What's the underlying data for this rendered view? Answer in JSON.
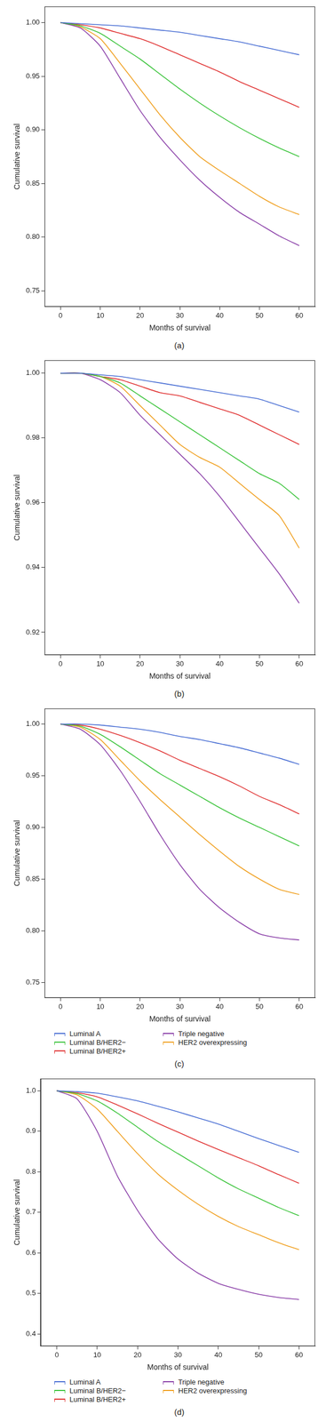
{
  "chart_data": [
    {
      "type": "line",
      "title": "(a)",
      "x_label": "Months of survival",
      "y_label": "Cumulative survival",
      "x": [
        0,
        5,
        10,
        15,
        20,
        25,
        30,
        35,
        40,
        45,
        50,
        55,
        60
      ],
      "xlim": [
        -4,
        64
      ],
      "xticks": [
        0,
        10,
        20,
        30,
        40,
        50,
        60
      ],
      "ylim": [
        0.735,
        1.015
      ],
      "yticks": [
        0.75,
        {
          "value": 0.8,
          "label": "0.80"
        },
        0.85,
        {
          "value": 0.9,
          "label": "0.90"
        },
        0.95,
        {
          "value": 1,
          "label": "1.00"
        }
      ],
      "grid": false,
      "series": [
        {
          "name": "Luminal A",
          "color": "#4a6fd4",
          "values": [
            1,
            0.999,
            0.998,
            0.997,
            0.995,
            0.993,
            0.991,
            0.988,
            0.985,
            0.982,
            0.978,
            0.974,
            0.97
          ]
        },
        {
          "name": "Luminal B/HER2−",
          "color": "#3cc43c",
          "values": [
            1,
            0.997,
            0.99,
            0.978,
            0.966,
            0.952,
            0.938,
            0.925,
            0.913,
            0.902,
            0.892,
            0.883,
            0.875
          ]
        },
        {
          "name": "Luminal B/HER2+",
          "color": "#e03232",
          "values": [
            1,
            0.998,
            0.995,
            0.99,
            0.985,
            0.978,
            0.97,
            0.962,
            0.954,
            0.945,
            0.937,
            0.929,
            0.921
          ]
        },
        {
          "name": "Triple negative",
          "color": "#8a3fa8",
          "values": [
            1,
            0.995,
            0.978,
            0.948,
            0.918,
            0.893,
            0.872,
            0.853,
            0.837,
            0.823,
            0.812,
            0.801,
            0.792
          ]
        },
        {
          "name": "HER2 overexpressing",
          "color": "#f0a020",
          "values": [
            1,
            0.996,
            0.985,
            0.962,
            0.938,
            0.914,
            0.893,
            0.875,
            0.862,
            0.85,
            0.838,
            0.828,
            0.821
          ]
        }
      ]
    },
    {
      "type": "line",
      "title": "(b)",
      "x_label": "Months of survival",
      "y_label": "Cumulative survival",
      "x": [
        0,
        5,
        10,
        15,
        20,
        25,
        30,
        35,
        40,
        45,
        50,
        55,
        60
      ],
      "xlim": [
        -4,
        64
      ],
      "xticks": [
        0,
        10,
        20,
        30,
        40,
        50,
        60
      ],
      "ylim": [
        0.913,
        1.004
      ],
      "yticks": [
        0.92,
        0.94,
        0.96,
        0.98,
        {
          "value": 1,
          "label": "1.00"
        }
      ],
      "grid": false,
      "series": [
        {
          "name": "Luminal A",
          "color": "#4a6fd4",
          "values": [
            1,
            1,
            0.9995,
            0.999,
            0.998,
            0.997,
            0.996,
            0.995,
            0.994,
            0.993,
            0.992,
            0.99,
            0.988
          ]
        },
        {
          "name": "Luminal B/HER2−",
          "color": "#3cc43c",
          "values": [
            1,
            1,
            0.999,
            0.997,
            0.993,
            0.989,
            0.985,
            0.981,
            0.977,
            0.973,
            0.969,
            0.966,
            0.961
          ]
        },
        {
          "name": "Luminal B/HER2+",
          "color": "#e03232",
          "values": [
            1,
            1,
            0.999,
            0.998,
            0.996,
            0.994,
            0.993,
            0.991,
            0.989,
            0.987,
            0.984,
            0.981,
            0.978
          ]
        },
        {
          "name": "Triple negative",
          "color": "#8a3fa8",
          "values": [
            1,
            1,
            0.998,
            0.994,
            0.987,
            0.981,
            0.975,
            0.969,
            0.962,
            0.954,
            0.946,
            0.938,
            0.929
          ]
        },
        {
          "name": "HER2 overexpressing",
          "color": "#f0a020",
          "values": [
            1,
            1,
            0.999,
            0.996,
            0.99,
            0.984,
            0.978,
            0.974,
            0.971,
            0.966,
            0.961,
            0.956,
            0.946
          ]
        }
      ]
    },
    {
      "type": "line",
      "title": "(c)",
      "x_label": "Months of survival",
      "y_label": "Cumulative survival",
      "legend": "bottom",
      "x": [
        0,
        5,
        10,
        15,
        20,
        25,
        30,
        35,
        40,
        45,
        50,
        55,
        60
      ],
      "xlim": [
        -4,
        64
      ],
      "xticks": [
        0,
        10,
        20,
        30,
        40,
        50,
        60
      ],
      "ylim": [
        0.735,
        1.015
      ],
      "yticks": [
        0.75,
        {
          "value": 0.8,
          "label": "0.80"
        },
        0.85,
        {
          "value": 0.9,
          "label": "0.90"
        },
        0.95,
        {
          "value": 1,
          "label": "1.00"
        }
      ],
      "grid": false,
      "series": [
        {
          "name": "Luminal A",
          "color": "#4a6fd4",
          "values": [
            1,
            1,
            0.999,
            0.997,
            0.995,
            0.992,
            0.988,
            0.985,
            0.981,
            0.977,
            0.972,
            0.967,
            0.961
          ]
        },
        {
          "name": "Luminal B/HER2−",
          "color": "#3cc43c",
          "values": [
            1,
            0.998,
            0.99,
            0.978,
            0.965,
            0.952,
            0.941,
            0.93,
            0.919,
            0.909,
            0.9,
            0.891,
            0.882
          ]
        },
        {
          "name": "Luminal B/HER2+",
          "color": "#e03232",
          "values": [
            1,
            0.999,
            0.995,
            0.989,
            0.982,
            0.974,
            0.965,
            0.957,
            0.949,
            0.94,
            0.93,
            0.922,
            0.913
          ]
        },
        {
          "name": "Triple negative",
          "color": "#8a3fa8",
          "values": [
            1,
            0.995,
            0.98,
            0.955,
            0.925,
            0.893,
            0.864,
            0.84,
            0.822,
            0.808,
            0.797,
            0.793,
            0.791
          ]
        },
        {
          "name": "HER2 overexpressing",
          "color": "#f0a020",
          "values": [
            1,
            0.997,
            0.985,
            0.965,
            0.945,
            0.927,
            0.91,
            0.893,
            0.877,
            0.862,
            0.85,
            0.84,
            0.835
          ]
        }
      ]
    },
    {
      "type": "line",
      "title": "(d)",
      "x_label": "Months of survival",
      "y_label": "Cumulative survival",
      "legend": "bottom",
      "x": [
        0,
        5,
        10,
        15,
        20,
        25,
        30,
        35,
        40,
        45,
        50,
        55,
        60
      ],
      "xlim": [
        -4,
        64
      ],
      "xticks": [
        0,
        10,
        20,
        30,
        40,
        50,
        60
      ],
      "ylim": [
        0.37,
        1.03
      ],
      "yticks": [
        0.4,
        0.5,
        0.6,
        0.7,
        0.8,
        0.9,
        {
          "value": 1,
          "label": "1.0"
        }
      ],
      "grid": false,
      "series": [
        {
          "name": "Luminal A",
          "color": "#4a6fd4",
          "values": [
            1,
            0.998,
            0.994,
            0.985,
            0.975,
            0.962,
            0.948,
            0.933,
            0.918,
            0.9,
            0.882,
            0.865,
            0.848
          ]
        },
        {
          "name": "Luminal B/HER2−",
          "color": "#3cc43c",
          "values": [
            1,
            0.993,
            0.975,
            0.945,
            0.91,
            0.875,
            0.845,
            0.815,
            0.785,
            0.758,
            0.735,
            0.712,
            0.692
          ]
        },
        {
          "name": "Luminal B/HER2+",
          "color": "#e03232",
          "values": [
            1,
            0.995,
            0.985,
            0.965,
            0.943,
            0.92,
            0.898,
            0.876,
            0.855,
            0.835,
            0.815,
            0.793,
            0.772
          ]
        },
        {
          "name": "Triple negative",
          "color": "#8a3fa8",
          "values": [
            1,
            0.98,
            0.9,
            0.79,
            0.705,
            0.635,
            0.585,
            0.55,
            0.525,
            0.51,
            0.498,
            0.49,
            0.485
          ]
        },
        {
          "name": "HER2 overexpressing",
          "color": "#f0a020",
          "values": [
            1,
            0.99,
            0.955,
            0.9,
            0.845,
            0.795,
            0.755,
            0.72,
            0.69,
            0.665,
            0.645,
            0.625,
            0.608
          ]
        }
      ]
    }
  ]
}
